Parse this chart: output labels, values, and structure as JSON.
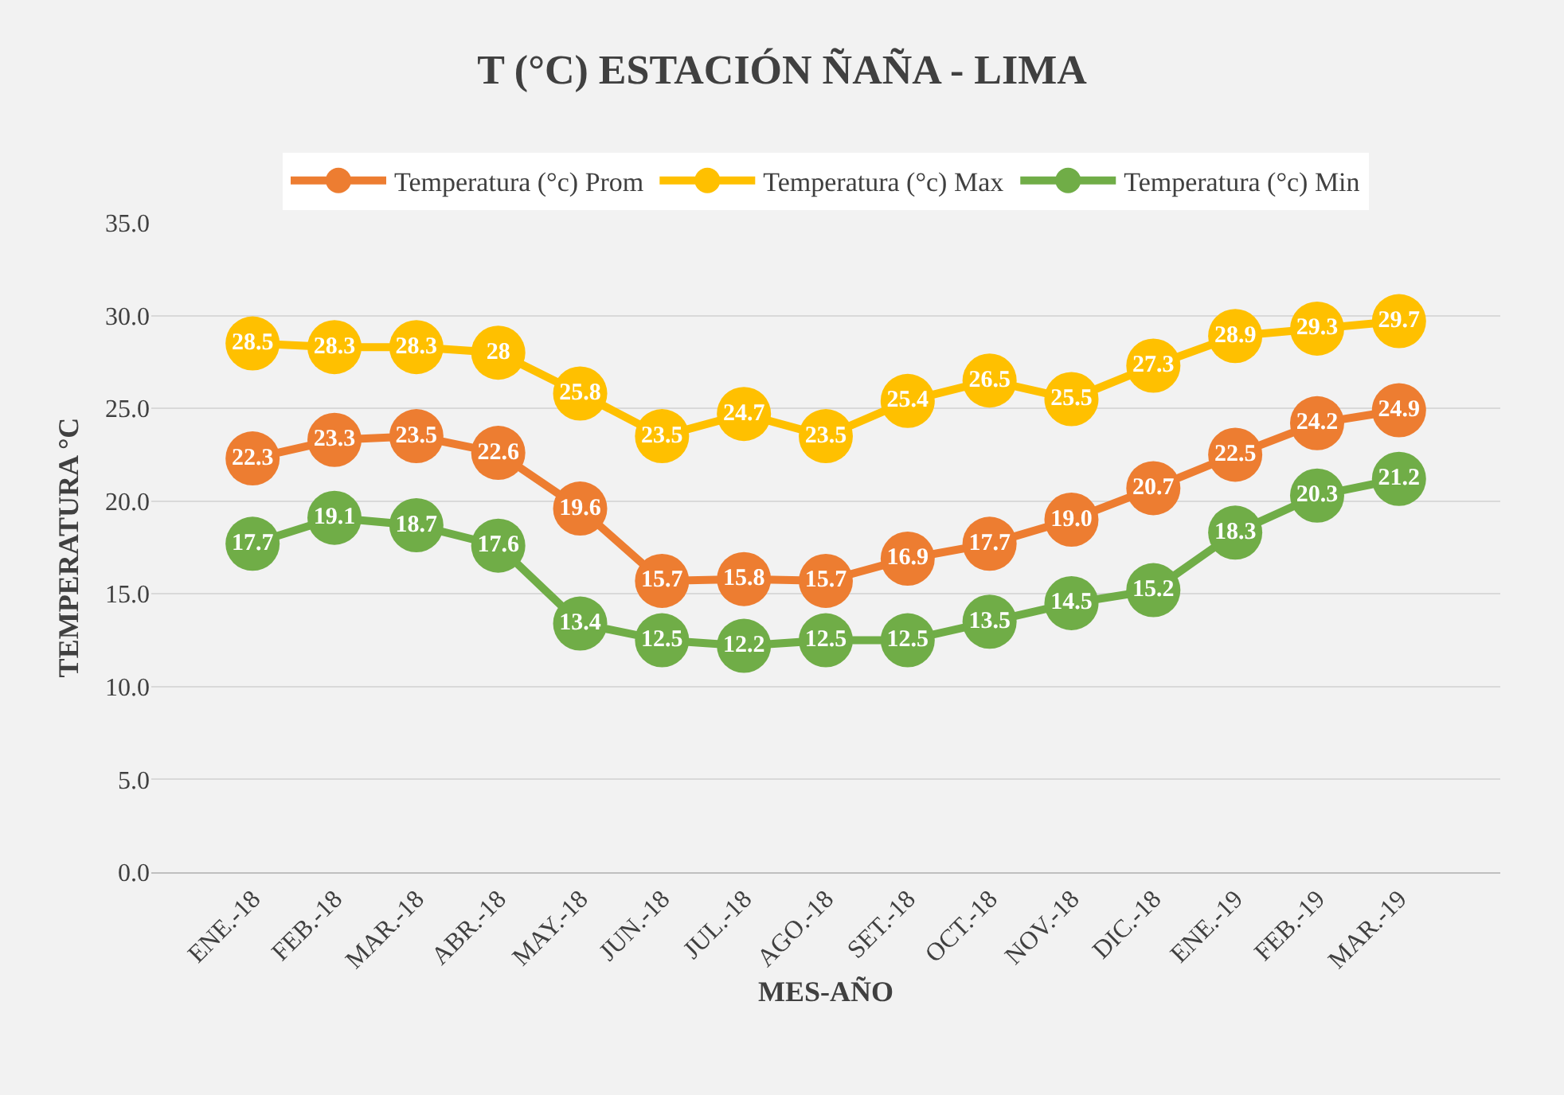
{
  "chart_data": {
    "type": "line",
    "title": "T (°C) ESTACIÓN ÑAÑA - LIMA",
    "xlabel": "MES-AÑO",
    "ylabel": "TEMPERATURA °C",
    "categories": [
      "ENE.-18",
      "FEB.-18",
      "MAR.-18",
      "ABR.-18",
      "MAY.-18",
      "JUN.-18",
      "JUL.-18",
      "AGO.-18",
      "SET.-18",
      "OCT.-18",
      "NOV.-18",
      "DIC.-18",
      "ENE.-19",
      "FEB.-19",
      "MAR.-19"
    ],
    "series": [
      {
        "name": "Temperatura (°c) Prom",
        "color": "#ed7d31",
        "values": [
          22.3,
          23.3,
          23.5,
          22.6,
          19.6,
          15.7,
          15.8,
          15.7,
          16.9,
          17.7,
          19.0,
          20.7,
          22.5,
          24.2,
          24.9
        ],
        "value_labels": [
          "22.3",
          "23.3",
          "23.5",
          "22.6",
          "19.6",
          "15.7",
          "15.8",
          "15.7",
          "16.9",
          "17.7",
          "19.0",
          "20.7",
          "22.5",
          "24.2",
          "24.9"
        ]
      },
      {
        "name": "Temperatura (°c) Max",
        "color": "#ffc000",
        "values": [
          28.5,
          28.3,
          28.3,
          28,
          25.8,
          23.5,
          24.7,
          23.5,
          25.4,
          26.5,
          25.5,
          27.3,
          28.9,
          29.3,
          29.7
        ],
        "value_labels": [
          "28.5",
          "28.3",
          "28.3",
          "28",
          "25.8",
          "23.5",
          "24.7",
          "23.5",
          "25.4",
          "26.5",
          "25.5",
          "27.3",
          "28.9",
          "29.3",
          "29.7"
        ]
      },
      {
        "name": "Temperatura (°c) Min",
        "color": "#70ad47",
        "values": [
          17.7,
          19.1,
          18.7,
          17.6,
          13.4,
          12.5,
          12.2,
          12.5,
          12.5,
          13.5,
          14.5,
          15.2,
          18.3,
          20.3,
          21.2
        ],
        "value_labels": [
          "17.7",
          "19.1",
          "18.7",
          "17.6",
          "13.4",
          "12.5",
          "12.2",
          "12.5",
          "12.5",
          "13.5",
          "14.5",
          "15.2",
          "18.3",
          "20.3",
          "21.2"
        ]
      }
    ],
    "ylim": [
      0,
      35
    ],
    "yticks": [
      {
        "value": 0,
        "label": "0.0"
      },
      {
        "value": 5,
        "label": "5.0"
      },
      {
        "value": 10,
        "label": "10.0"
      },
      {
        "value": 15,
        "label": "15.0"
      },
      {
        "value": 20,
        "label": "20.0"
      },
      {
        "value": 25,
        "label": "25.0"
      },
      {
        "value": 30,
        "label": "30.0"
      },
      {
        "value": 35,
        "label": "35.0"
      }
    ],
    "grid": "y",
    "legend": "top",
    "marker": "circle",
    "line_style": "solid"
  }
}
